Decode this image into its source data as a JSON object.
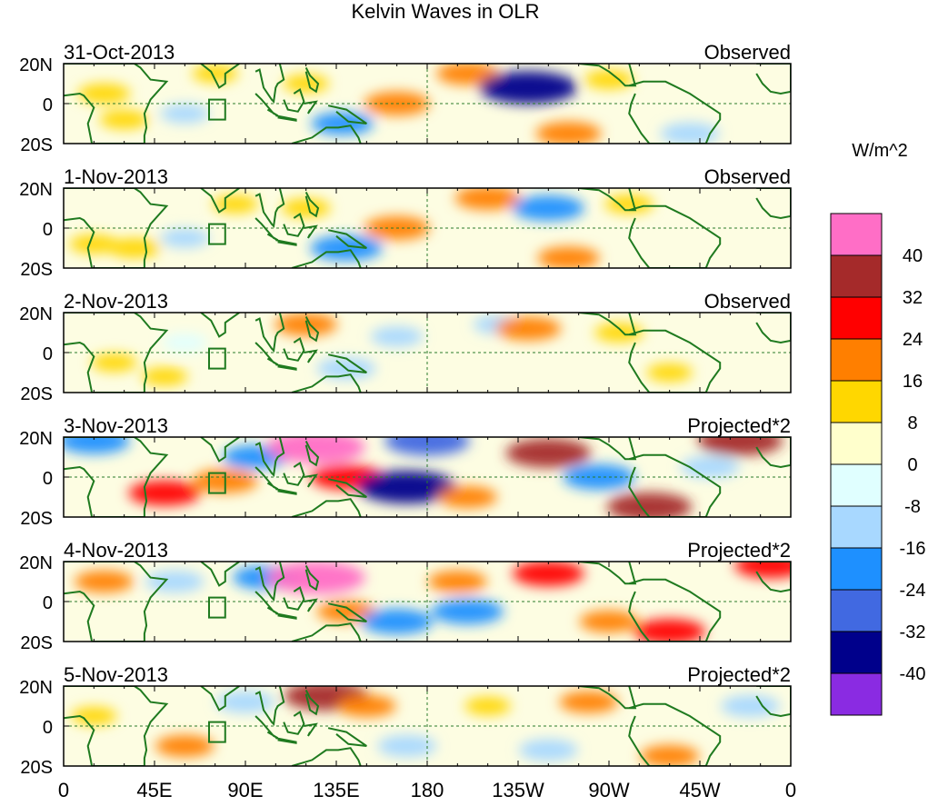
{
  "chart_data": {
    "type": "heatmap",
    "title": "Kelvin Waves in OLR",
    "units": "W/m^2",
    "x_ticks": [
      "0",
      "45E",
      "90E",
      "135E",
      "180",
      "135W",
      "90W",
      "45W",
      "0"
    ],
    "y_ticks": [
      "20N",
      "0",
      "20S"
    ],
    "xlim": [
      0,
      360
    ],
    "ylim": [
      -20,
      20
    ],
    "colorbar": {
      "levels": [
        "40",
        "32",
        "24",
        "16",
        "8",
        "0",
        "-8",
        "-16",
        "-24",
        "-32",
        "-40"
      ],
      "colors": [
        "#ff6ec6",
        "#a52a2a",
        "#ff0000",
        "#ff7f00",
        "#ffd700",
        "#ffffcc",
        "#e0ffff",
        "#a8d8ff",
        "#1e90ff",
        "#4169e1",
        "#00008b",
        "#8a2be2"
      ]
    },
    "panels": [
      {
        "date": "31-Oct-2013",
        "label": "Observed",
        "anomalies": [
          {
            "lon": 20,
            "lat": 5,
            "value": 12
          },
          {
            "lon": 30,
            "lat": -8,
            "value": 10
          },
          {
            "lon": 120,
            "lat": 10,
            "value": 8
          },
          {
            "lon": 138,
            "lat": -10,
            "value": -18
          },
          {
            "lon": 165,
            "lat": 0,
            "value": 20
          },
          {
            "lon": 200,
            "lat": 15,
            "value": 18
          },
          {
            "lon": 230,
            "lat": 8,
            "value": -40
          },
          {
            "lon": 250,
            "lat": -15,
            "value": 20
          },
          {
            "lon": 270,
            "lat": 12,
            "value": 10
          },
          {
            "lon": 310,
            "lat": -15,
            "value": -16
          },
          {
            "lon": 75,
            "lat": 15,
            "value": 8
          },
          {
            "lon": 60,
            "lat": -5,
            "value": -10
          }
        ]
      },
      {
        "date": "1-Nov-2013",
        "label": "Observed",
        "anomalies": [
          {
            "lon": 15,
            "lat": -8,
            "value": 10
          },
          {
            "lon": 35,
            "lat": -10,
            "value": 12
          },
          {
            "lon": 85,
            "lat": 12,
            "value": 8
          },
          {
            "lon": 120,
            "lat": 10,
            "value": 10
          },
          {
            "lon": 140,
            "lat": -10,
            "value": -24
          },
          {
            "lon": 165,
            "lat": 0,
            "value": 20
          },
          {
            "lon": 210,
            "lat": 15,
            "value": 20
          },
          {
            "lon": 240,
            "lat": 10,
            "value": -24
          },
          {
            "lon": 250,
            "lat": -15,
            "value": 18
          },
          {
            "lon": 280,
            "lat": 12,
            "value": 10
          },
          {
            "lon": 60,
            "lat": -5,
            "value": -10
          }
        ]
      },
      {
        "date": "2-Nov-2013",
        "label": "Observed",
        "anomalies": [
          {
            "lon": 25,
            "lat": -5,
            "value": 8
          },
          {
            "lon": 50,
            "lat": -12,
            "value": 8
          },
          {
            "lon": 120,
            "lat": 14,
            "value": 18
          },
          {
            "lon": 140,
            "lat": -8,
            "value": -16
          },
          {
            "lon": 165,
            "lat": 8,
            "value": -12
          },
          {
            "lon": 215,
            "lat": 14,
            "value": -10
          },
          {
            "lon": 230,
            "lat": 12,
            "value": 20
          },
          {
            "lon": 275,
            "lat": 10,
            "value": 10
          },
          {
            "lon": 300,
            "lat": -10,
            "value": 8
          },
          {
            "lon": 60,
            "lat": 5,
            "value": -8
          }
        ]
      },
      {
        "date": "3-Nov-2013",
        "label": "Projected*2",
        "anomalies": [
          {
            "lon": 15,
            "lat": 18,
            "value": -24
          },
          {
            "lon": 50,
            "lat": -8,
            "value": 24
          },
          {
            "lon": 80,
            "lat": -2,
            "value": 20
          },
          {
            "lon": 95,
            "lat": 10,
            "value": -20
          },
          {
            "lon": 125,
            "lat": 15,
            "value": 40
          },
          {
            "lon": 140,
            "lat": 0,
            "value": 24
          },
          {
            "lon": 170,
            "lat": -5,
            "value": -40
          },
          {
            "lon": 180,
            "lat": 18,
            "value": -32
          },
          {
            "lon": 200,
            "lat": -10,
            "value": 16
          },
          {
            "lon": 240,
            "lat": 12,
            "value": 32
          },
          {
            "lon": 265,
            "lat": 0,
            "value": -24
          },
          {
            "lon": 290,
            "lat": -15,
            "value": 32
          },
          {
            "lon": 335,
            "lat": 18,
            "value": 32
          },
          {
            "lon": 320,
            "lat": 5,
            "value": -16
          }
        ]
      },
      {
        "date": "4-Nov-2013",
        "label": "Projected*2",
        "anomalies": [
          {
            "lon": 20,
            "lat": 10,
            "value": 16
          },
          {
            "lon": 55,
            "lat": 10,
            "value": -16
          },
          {
            "lon": 100,
            "lat": 12,
            "value": -20
          },
          {
            "lon": 125,
            "lat": 12,
            "value": 40
          },
          {
            "lon": 140,
            "lat": -5,
            "value": 16
          },
          {
            "lon": 165,
            "lat": -10,
            "value": -24
          },
          {
            "lon": 195,
            "lat": 10,
            "value": 16
          },
          {
            "lon": 200,
            "lat": -5,
            "value": -24
          },
          {
            "lon": 240,
            "lat": 14,
            "value": 24
          },
          {
            "lon": 270,
            "lat": -10,
            "value": 16
          },
          {
            "lon": 300,
            "lat": -15,
            "value": 24
          },
          {
            "lon": 350,
            "lat": 18,
            "value": 24
          }
        ]
      },
      {
        "date": "5-Nov-2013",
        "label": "Projected*2",
        "anomalies": [
          {
            "lon": 15,
            "lat": 5,
            "value": 8
          },
          {
            "lon": 60,
            "lat": -10,
            "value": 16
          },
          {
            "lon": 90,
            "lat": 12,
            "value": -16
          },
          {
            "lon": 130,
            "lat": 15,
            "value": 32
          },
          {
            "lon": 150,
            "lat": 10,
            "value": 16
          },
          {
            "lon": 170,
            "lat": -10,
            "value": -16
          },
          {
            "lon": 210,
            "lat": 10,
            "value": 8
          },
          {
            "lon": 240,
            "lat": -12,
            "value": -16
          },
          {
            "lon": 260,
            "lat": 12,
            "value": 16
          },
          {
            "lon": 300,
            "lat": -15,
            "value": 16
          },
          {
            "lon": 340,
            "lat": 10,
            "value": -16
          }
        ]
      }
    ]
  }
}
